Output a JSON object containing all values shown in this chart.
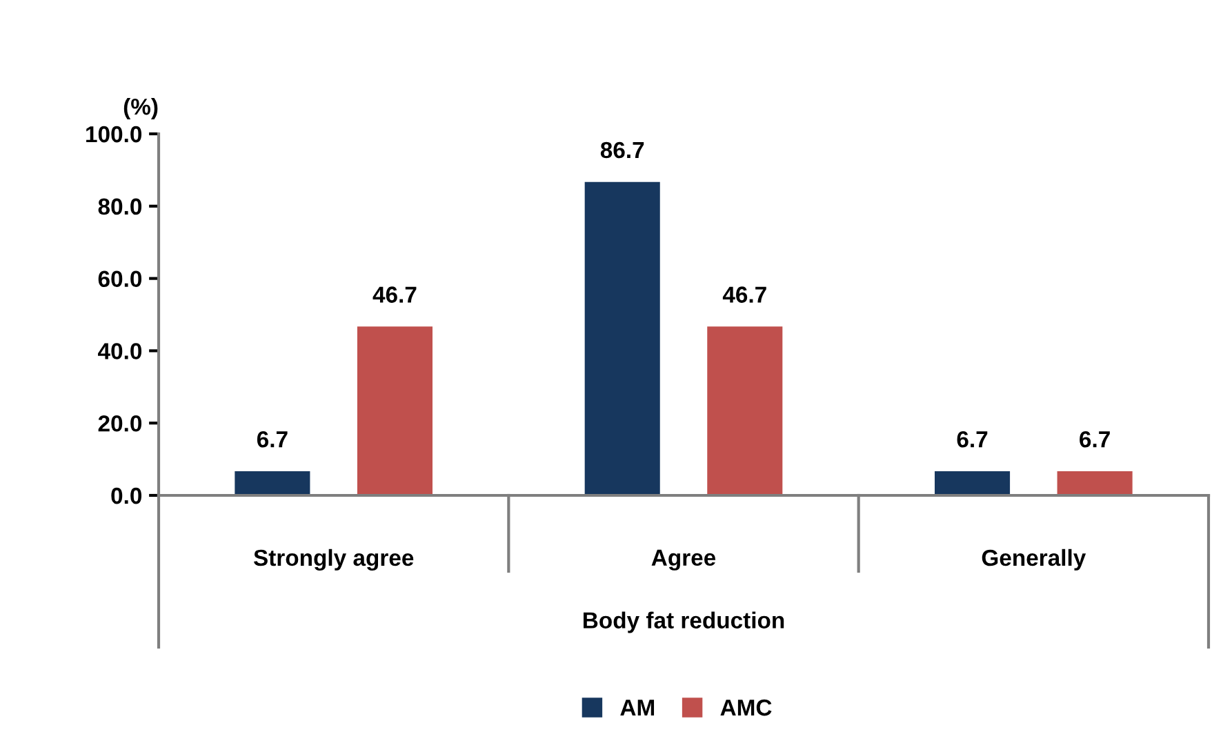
{
  "chart_data": {
    "type": "bar",
    "xlabel": "Body fat reduction",
    "ylabel": "(%)",
    "categories": [
      "Strongly agree",
      "Agree",
      "Generally"
    ],
    "series": [
      {
        "name": "AM",
        "color": "#17375e",
        "values": [
          6.7,
          86.7,
          6.7
        ]
      },
      {
        "name": "AMC",
        "color": "#c0504d",
        "values": [
          46.7,
          46.7,
          6.7
        ]
      }
    ],
    "ylim": [
      0,
      100
    ],
    "yticks": [
      {
        "value": 0,
        "label": "0.0"
      },
      {
        "value": 20,
        "label": "20.0"
      },
      {
        "value": 40,
        "label": "40.0"
      },
      {
        "value": 60,
        "label": "60.0"
      },
      {
        "value": 80,
        "label": "80.0"
      },
      {
        "value": 100,
        "label": "100.0"
      }
    ],
    "data_labels": true,
    "grid": false,
    "legend": "bottom"
  }
}
